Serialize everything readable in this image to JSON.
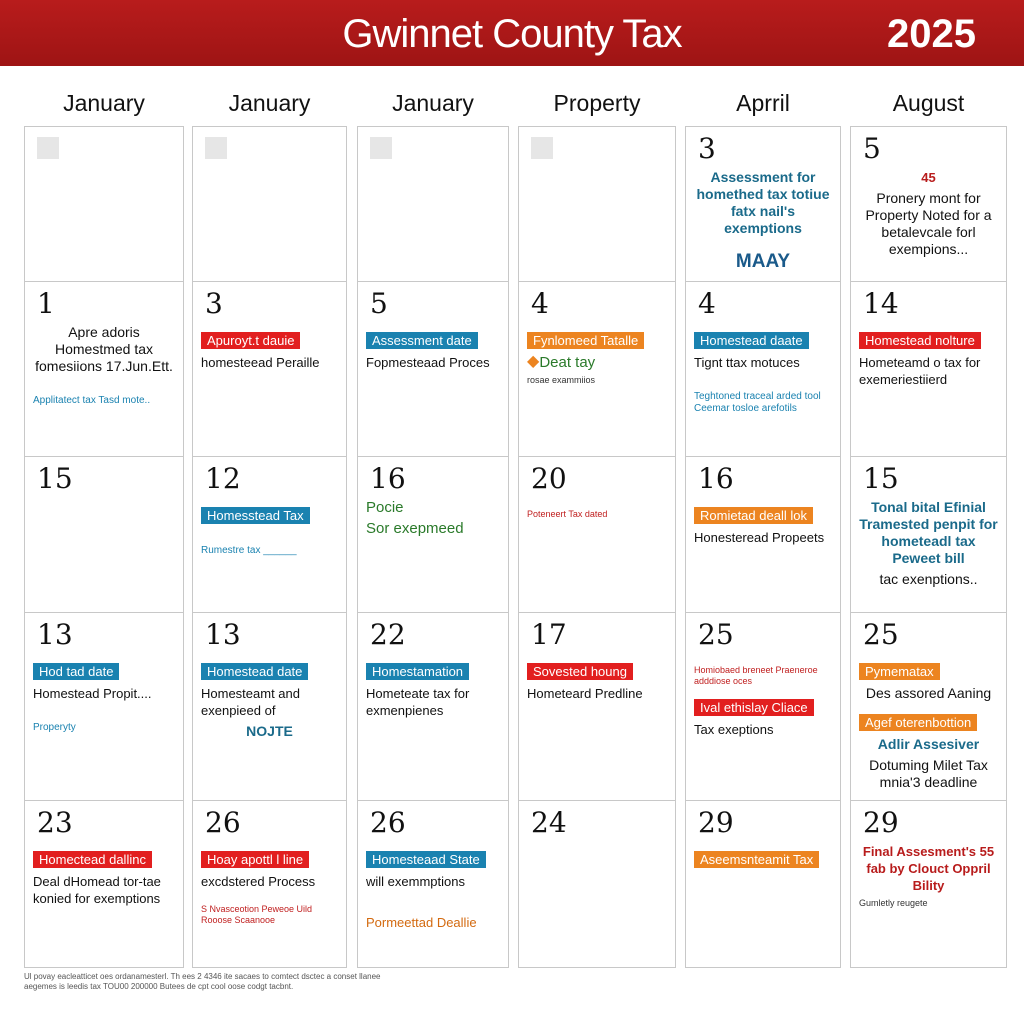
{
  "header": {
    "title": "Gwinnet County Tax",
    "year": "2025"
  },
  "columns": [
    "January",
    "January",
    "January",
    "Property",
    "Aprril",
    "August"
  ],
  "colors": {
    "banner": "#b81c1c",
    "red": "#e21f1f",
    "blue": "#1a82b0",
    "orange": "#ec8420",
    "green": "#2a7a2a"
  },
  "rows": [
    [
      {
        "day": "",
        "ph": true,
        "items": []
      },
      {
        "day": "",
        "ph": true,
        "items": []
      },
      {
        "day": "",
        "ph": true,
        "items": []
      },
      {
        "day": "",
        "ph": true,
        "items": []
      },
      {
        "day": "3",
        "items": [
          {
            "t": "Assessment for homethed tax totiue fatx nail's exemptions",
            "s": "blue-c"
          },
          {
            "t": "MAAY",
            "s": "big-blue"
          }
        ]
      },
      {
        "day": "5",
        "items": [
          {
            "t": "45",
            "s": "text-red-c"
          },
          {
            "t": "Pronery mont for Property Noted for a betalevcale forl exempions...",
            "s": "text-c"
          }
        ]
      }
    ],
    [
      {
        "day": "1",
        "items": [
          {
            "t": "Apre adoris Homestmed tax fomesiions 17.Jun.Ett.",
            "s": "text-c"
          },
          {
            "t": "Applitatect tax Tasd mote..",
            "s": "small-blue"
          }
        ]
      },
      {
        "day": "3",
        "items": [
          {
            "t": "Apuroyt.t dauie",
            "s": "tag-red"
          },
          {
            "t": "homesteead Peraille",
            "s": "text"
          }
        ]
      },
      {
        "day": "5",
        "items": [
          {
            "t": "Assessment date",
            "s": "tag-blue"
          },
          {
            "t": "Fopmesteaad Proces",
            "s": "text"
          }
        ]
      },
      {
        "day": "4",
        "items": [
          {
            "t": "Fynlomeed Tatalle",
            "s": "tag-orange"
          },
          {
            "t": "Deat tay",
            "s": "text-green",
            "icon": "shield-icon"
          },
          {
            "t": "rosae exammiios",
            "s": "small"
          }
        ]
      },
      {
        "day": "4",
        "items": [
          {
            "t": "Homestead daate",
            "s": "tag-blue"
          },
          {
            "t": "Tignt ttax motuces",
            "s": "text"
          },
          {
            "t": "Teghtoned traceal arded tool Ceemar tosloe arefotils",
            "s": "small-blue"
          }
        ]
      },
      {
        "day": "14",
        "items": [
          {
            "t": "Homestead nolture",
            "s": "tag-red"
          },
          {
            "t": "Hometeamd o tax for exemeriestiierd",
            "s": "text"
          }
        ]
      }
    ],
    [
      {
        "day": "15",
        "items": []
      },
      {
        "day": "12",
        "items": [
          {
            "t": "Homesstead Tax",
            "s": "tag-blue"
          },
          {
            "t": "Rumestre tax ______",
            "s": "small-blue"
          }
        ]
      },
      {
        "day": "16",
        "items": [
          {
            "t": "Pocie",
            "s": "text-green"
          },
          {
            "t": "Sor exepmeed",
            "s": "text-green"
          }
        ]
      },
      {
        "day": "20",
        "items": [
          {
            "t": "Poteneert Tax dated",
            "s": "small-red"
          }
        ]
      },
      {
        "day": "16",
        "items": [
          {
            "t": "Romietad deall lok",
            "s": "tag-orange"
          },
          {
            "t": "Honesteread Propeets",
            "s": "text"
          }
        ]
      },
      {
        "day": "15",
        "items": [
          {
            "t": "Tonal bital Efinial Tramested penpit for hometeadl tax Peweet bill",
            "s": "blue-c"
          },
          {
            "t": "tac exenptions..",
            "s": "text-c"
          }
        ]
      }
    ],
    [
      {
        "day": "13",
        "items": [
          {
            "t": "Hod tad date",
            "s": "tag-blue"
          },
          {
            "t": "Homestead Propit....",
            "s": "text"
          },
          {
            "t": "Properyty",
            "s": "small-blue"
          }
        ]
      },
      {
        "day": "13",
        "items": [
          {
            "t": "Homestead date",
            "s": "tag-blue"
          },
          {
            "t": "Homesteamt and exenpieed of",
            "s": "text"
          },
          {
            "t": "NOJTE",
            "s": "blue-c"
          }
        ]
      },
      {
        "day": "22",
        "items": [
          {
            "t": "Homestamation",
            "s": "tag-blue"
          },
          {
            "t": "Hometeate tax for exmenpienes",
            "s": "text"
          }
        ]
      },
      {
        "day": "17",
        "items": [
          {
            "t": "Sovested houng",
            "s": "tag-red"
          },
          {
            "t": "Hometeard Predline",
            "s": "text"
          }
        ]
      },
      {
        "day": "25",
        "items": [
          {
            "t": "Homiobaed breneet Praeneroe adddiose oces",
            "s": "small-red"
          },
          {
            "t": "Ival ethislay Cliace",
            "s": "tag-red"
          },
          {
            "t": "Tax exeptions",
            "s": "text"
          }
        ]
      },
      {
        "day": "25",
        "items": [
          {
            "t": "Pymematax",
            "s": "tag-orange"
          },
          {
            "t": "Des assored Aaning",
            "s": "text-c"
          },
          {
            "t": "Agef oterenbottion",
            "s": "tag-orange"
          },
          {
            "t": "Adlir Assesiver",
            "s": "blue-c"
          },
          {
            "t": "Dotuming Milet Tax mnia'3 deadline",
            "s": "text-c"
          }
        ]
      }
    ],
    [
      {
        "day": "23",
        "items": [
          {
            "t": "Homectead dallinc",
            "s": "tag-red"
          },
          {
            "t": "Deal dHomead tor-tae konied for exemptions",
            "s": "text"
          }
        ]
      },
      {
        "day": "26",
        "items": [
          {
            "t": "Hoay apottl l line",
            "s": "tag-red"
          },
          {
            "t": "excdstered Process",
            "s": "text"
          },
          {
            "t": "S Nvasceotion Peweoe Uild Rooose Scaanooe",
            "s": "small-red"
          }
        ]
      },
      {
        "day": "26",
        "items": [
          {
            "t": "Homesteaad State",
            "s": "tag-blue"
          },
          {
            "t": "will exemmptions",
            "s": "text"
          },
          {
            "t": "Pormeettad Deallie",
            "s": "orange"
          }
        ]
      },
      {
        "day": "24",
        "items": []
      },
      {
        "day": "29",
        "items": [
          {
            "t": "Aseemsnteamit Tax",
            "s": "tag-orange"
          }
        ]
      },
      {
        "day": "29",
        "items": [
          {
            "t": "Final Assesment's 55 fab by Clouct Oppril Bility",
            "s": "text-red-c"
          },
          {
            "t": "Gumletly reugete",
            "s": "small"
          }
        ]
      }
    ]
  ],
  "footer": "Ul povay eacleatticet oes ordanamesterl. Th ees 2 4346 ite sacaes to comtect dsctec a conset llanee aegemes is leedis tax TOU00 200000 Butees de cpt cool oose codgt tacbnt."
}
